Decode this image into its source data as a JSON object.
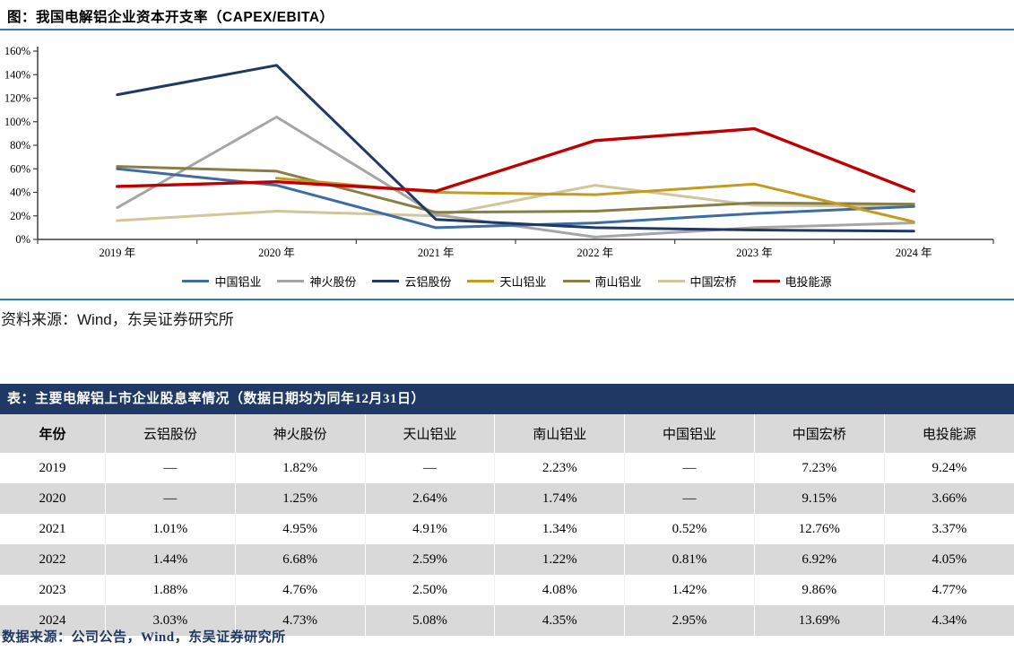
{
  "page": {
    "figure_title": "图：我国电解铝企业资本开支率（CAPEX/EBITA）",
    "figure_source": "资料来源：Wind，东吴证券研究所",
    "table_title": "表：主要电解铝上市企业股息率情况（数据日期均为同年12月31日）",
    "table_source": "数据来源：公司公告，Wind，东吴证券研究所"
  },
  "colors": {
    "rule_blue": "#2E78BE",
    "navy": "#1F3864",
    "table_stripe": "#D9D9D9",
    "axis": "#3F3F3F"
  },
  "chart_data": {
    "type": "line",
    "title": "我国电解铝企业资本开支率（CAPEX/EBITA）",
    "categories": [
      "2019 年",
      "2020 年",
      "2021 年",
      "2022 年",
      "2023 年",
      "2024 年"
    ],
    "xlabel": "",
    "ylabel": "",
    "ylim": [
      0,
      160
    ],
    "ytick_step": 20,
    "ytick_labels": [
      "0%",
      "20%",
      "40%",
      "60%",
      "80%",
      "100%",
      "120%",
      "140%",
      "160%"
    ],
    "grid": false,
    "legend_position": "bottom",
    "unit": "percent",
    "series": [
      {
        "name": "中国铝业",
        "color": "#3E6CA5",
        "values": [
          60,
          46,
          10,
          14,
          22,
          28
        ]
      },
      {
        "name": "神火股份",
        "color": "#A6A6A6",
        "values": [
          27,
          104,
          21,
          2,
          10,
          14
        ]
      },
      {
        "name": "云铝股份",
        "color": "#1F3864",
        "values": [
          123,
          148,
          17,
          10,
          8,
          7
        ]
      },
      {
        "name": "天山铝业",
        "color": "#C49A1F",
        "values": [
          null,
          52,
          40,
          38,
          47,
          15
        ]
      },
      {
        "name": "南山铝业",
        "color": "#877F46",
        "values": [
          62,
          58,
          23,
          24,
          31,
          30
        ]
      },
      {
        "name": "中国宏桥",
        "color": "#CFC69C",
        "values": [
          16,
          24,
          20,
          46,
          29,
          28
        ]
      },
      {
        "name": "电投能源",
        "color": "#C00000",
        "values": [
          45,
          49,
          41,
          84,
          94,
          41
        ]
      }
    ]
  },
  "table": {
    "columns": [
      "年份",
      "云铝股份",
      "神火股份",
      "天山铝业",
      "南山铝业",
      "中国铝业",
      "中国宏桥",
      "电投能源"
    ],
    "rows": [
      [
        "2019",
        "—",
        "1.82%",
        "—",
        "2.23%",
        "—",
        "7.23%",
        "9.24%"
      ],
      [
        "2020",
        "—",
        "1.25%",
        "2.64%",
        "1.74%",
        "—",
        "9.15%",
        "3.66%"
      ],
      [
        "2021",
        "1.01%",
        "4.95%",
        "4.91%",
        "1.34%",
        "0.52%",
        "12.76%",
        "3.37%"
      ],
      [
        "2022",
        "1.44%",
        "6.68%",
        "2.59%",
        "1.22%",
        "0.81%",
        "6.92%",
        "4.05%"
      ],
      [
        "2023",
        "1.88%",
        "4.76%",
        "2.50%",
        "4.08%",
        "1.42%",
        "9.86%",
        "4.77%"
      ],
      [
        "2024",
        "3.03%",
        "4.73%",
        "5.08%",
        "4.35%",
        "2.95%",
        "13.69%",
        "4.34%"
      ]
    ]
  }
}
